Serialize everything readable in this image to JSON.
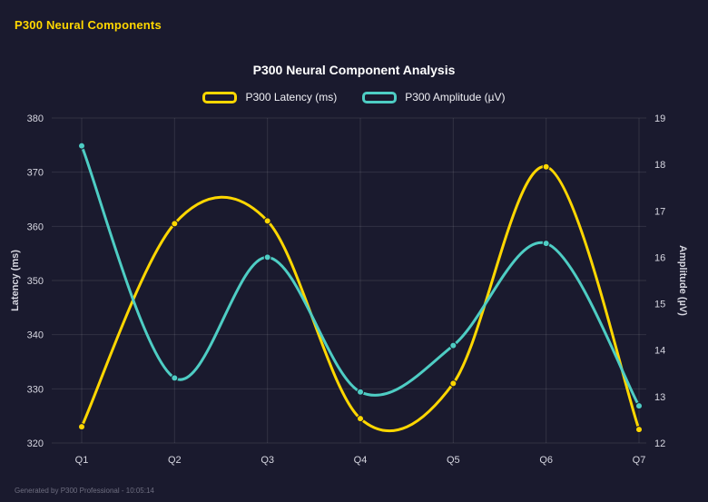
{
  "page": {
    "header": "P300 Neural Components",
    "footer": "Generated by P300 Professional - 10:05:14",
    "background_color": "#1a1a2e",
    "header_color": "#ffd700"
  },
  "chart_data": {
    "type": "line",
    "title": "P300 Neural Component Analysis",
    "categories": [
      "Q1",
      "Q2",
      "Q3",
      "Q4",
      "Q5",
      "Q6",
      "Q7"
    ],
    "series": [
      {
        "name": "P300 Latency (ms)",
        "axis": "left",
        "color": "#ffd700",
        "values": [
          323,
          360.5,
          361,
          324.5,
          331,
          371,
          322.5
        ]
      },
      {
        "name": "P300 Amplitude (µV)",
        "axis": "right",
        "color": "#4ecdc4",
        "values": [
          18.4,
          13.4,
          16.0,
          13.1,
          14.1,
          16.3,
          12.8
        ]
      }
    ],
    "left_axis": {
      "label": "Latency (ms)",
      "min": 320,
      "max": 380,
      "ticks": [
        320,
        330,
        340,
        350,
        360,
        370,
        380
      ]
    },
    "right_axis": {
      "label": "Amplitude (µV)",
      "min": 12,
      "max": 19,
      "ticks": [
        12,
        13,
        14,
        15,
        16,
        17,
        18,
        19
      ]
    },
    "grid": true,
    "legend_position": "top",
    "grid_color": "rgba(255,255,255,0.10)",
    "tick_color": "#d6d6e0"
  }
}
